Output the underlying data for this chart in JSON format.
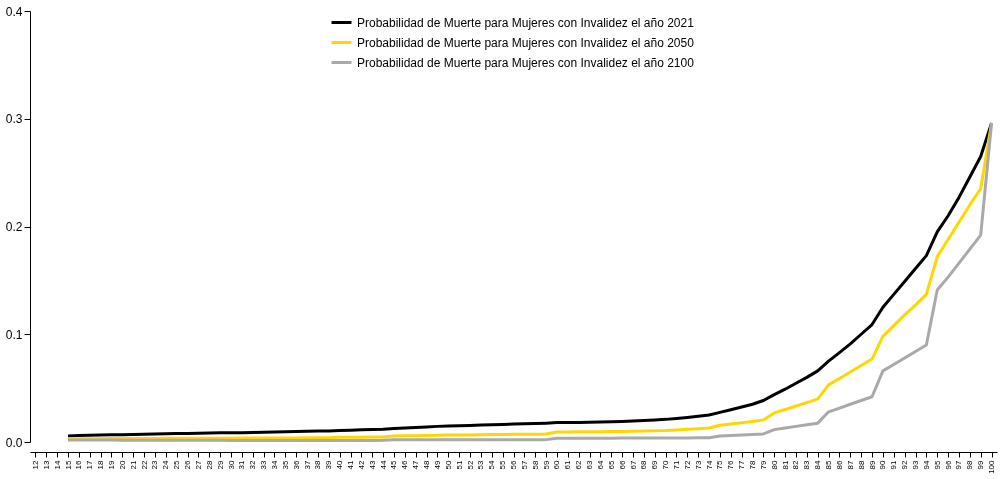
{
  "chart_data": {
    "type": "line",
    "categories": [
      "12",
      "13",
      "14",
      "15",
      "16",
      "17",
      "18",
      "19",
      "20",
      "21",
      "22",
      "23",
      "24",
      "25",
      "26",
      "27",
      "28",
      "29",
      "30",
      "31",
      "32",
      "33",
      "34",
      "35",
      "36",
      "37",
      "38",
      "39",
      "40",
      "41",
      "42",
      "43",
      "44",
      "45",
      "46",
      "47",
      "48",
      "49",
      "50",
      "51",
      "52",
      "53",
      "54",
      "55",
      "56",
      "57",
      "58",
      "59",
      "60",
      "61",
      "62",
      "63",
      "64",
      "65",
      "66",
      "67",
      "68",
      "69",
      "70",
      "71",
      "72",
      "73",
      "74",
      "75",
      "76",
      "77",
      "78",
      "79",
      "80",
      "81",
      "82",
      "83",
      "84",
      "85",
      "86",
      "87",
      "88",
      "89",
      "90",
      "91",
      "92",
      "93",
      "94",
      "95",
      "96",
      "97",
      "98",
      "99",
      "100"
    ],
    "series": [
      {
        "name": "Probabilidad de Muerte para Mujeres con Invalidez el año 2021",
        "color": "#000000",
        "values": [
          null,
          null,
          null,
          0.0055,
          0.006,
          0.0062,
          0.0065,
          0.0067,
          0.0068,
          0.007,
          0.0072,
          0.0075,
          0.0077,
          0.0078,
          0.008,
          0.0082,
          0.0084,
          0.0086,
          0.0085,
          0.0087,
          0.0089,
          0.0091,
          0.0093,
          0.0095,
          0.0097,
          0.0099,
          0.0101,
          0.0103,
          0.0107,
          0.011,
          0.0113,
          0.0116,
          0.0119,
          0.0125,
          0.013,
          0.0135,
          0.014,
          0.0145,
          0.0148,
          0.0151,
          0.0154,
          0.0157,
          0.016,
          0.0163,
          0.0166,
          0.0169,
          0.0172,
          0.0175,
          0.018,
          0.0181,
          0.0182,
          0.0183,
          0.0185,
          0.0187,
          0.019,
          0.0194,
          0.0199,
          0.0205,
          0.021,
          0.0218,
          0.0228,
          0.0238,
          0.025,
          0.0275,
          0.03,
          0.0325,
          0.035,
          0.0385,
          0.044,
          0.049,
          0.0545,
          0.06,
          0.066,
          0.075,
          0.083,
          0.091,
          0.1,
          0.109,
          0.125,
          0.137,
          0.149,
          0.161,
          0.173,
          0.195,
          0.21,
          0.227,
          0.246,
          0.265,
          0.296
        ]
      },
      {
        "name": "Probabilidad de Muerte para Mujeres con Invalidez el año 2050",
        "color": "#ffd700",
        "values": [
          null,
          null,
          null,
          0.003,
          0.003,
          0.0031,
          0.0031,
          0.0032,
          0.0032,
          0.0032,
          0.0033,
          0.0033,
          0.0034,
          0.0034,
          0.0034,
          0.0035,
          0.0035,
          0.0035,
          0.0035,
          0.0036,
          0.0036,
          0.0037,
          0.0037,
          0.0038,
          0.0038,
          0.0039,
          0.004,
          0.004,
          0.0043,
          0.0044,
          0.0045,
          0.0046,
          0.0047,
          0.0055,
          0.0057,
          0.0059,
          0.006,
          0.0062,
          0.0064,
          0.0065,
          0.0066,
          0.0068,
          0.0069,
          0.007,
          0.0071,
          0.0072,
          0.0073,
          0.0074,
          0.0092,
          0.0093,
          0.0094,
          0.0095,
          0.0096,
          0.0097,
          0.0098,
          0.01,
          0.0102,
          0.0104,
          0.0106,
          0.0112,
          0.0118,
          0.0124,
          0.013,
          0.0155,
          0.0167,
          0.0179,
          0.0191,
          0.0205,
          0.027,
          0.0302,
          0.0334,
          0.0366,
          0.04,
          0.053,
          0.059,
          0.065,
          0.071,
          0.077,
          0.098,
          0.108,
          0.118,
          0.127,
          0.137,
          0.172,
          0.188,
          0.204,
          0.22,
          0.235,
          0.296
        ]
      },
      {
        "name": "Probabilidad de Muerte para Mujeres con Invalidez el año 2100",
        "color": "#a9a9a9",
        "values": [
          null,
          null,
          null,
          0.0018,
          0.0018,
          0.0018,
          0.0018,
          0.0018,
          0.0017,
          0.0017,
          0.0017,
          0.0017,
          0.0017,
          0.0016,
          0.0016,
          0.0016,
          0.0016,
          0.0016,
          0.0015,
          0.0015,
          0.0015,
          0.0015,
          0.0015,
          0.0015,
          0.0015,
          0.0015,
          0.0015,
          0.0015,
          0.0015,
          0.0015,
          0.0015,
          0.0015,
          0.0016,
          0.0021,
          0.0021,
          0.0021,
          0.0021,
          0.0021,
          0.002,
          0.002,
          0.002,
          0.002,
          0.0021,
          0.0021,
          0.0021,
          0.0021,
          0.0022,
          0.0022,
          0.0035,
          0.0035,
          0.0035,
          0.0035,
          0.0035,
          0.0035,
          0.0036,
          0.0036,
          0.0037,
          0.0037,
          0.0036,
          0.0037,
          0.0038,
          0.0039,
          0.004,
          0.0055,
          0.006,
          0.0065,
          0.007,
          0.0075,
          0.0115,
          0.013,
          0.0145,
          0.016,
          0.0175,
          0.028,
          0.0315,
          0.035,
          0.0385,
          0.042,
          0.066,
          0.072,
          0.078,
          0.084,
          0.09,
          0.141,
          0.153,
          0.166,
          0.179,
          0.192,
          0.296
        ]
      }
    ],
    "ylim": [
      0,
      0.4
    ],
    "yticks": [
      {
        "value": 0,
        "label": "0.0"
      },
      {
        "value": 0.1,
        "label": "0.1"
      },
      {
        "value": 0.2,
        "label": "0.2"
      },
      {
        "value": 0.3,
        "label": "0.3"
      },
      {
        "value": 0.4,
        "label": "0.4"
      }
    ],
    "grid": false,
    "legend": "top",
    "marker": "none",
    "line_style": "solid"
  }
}
